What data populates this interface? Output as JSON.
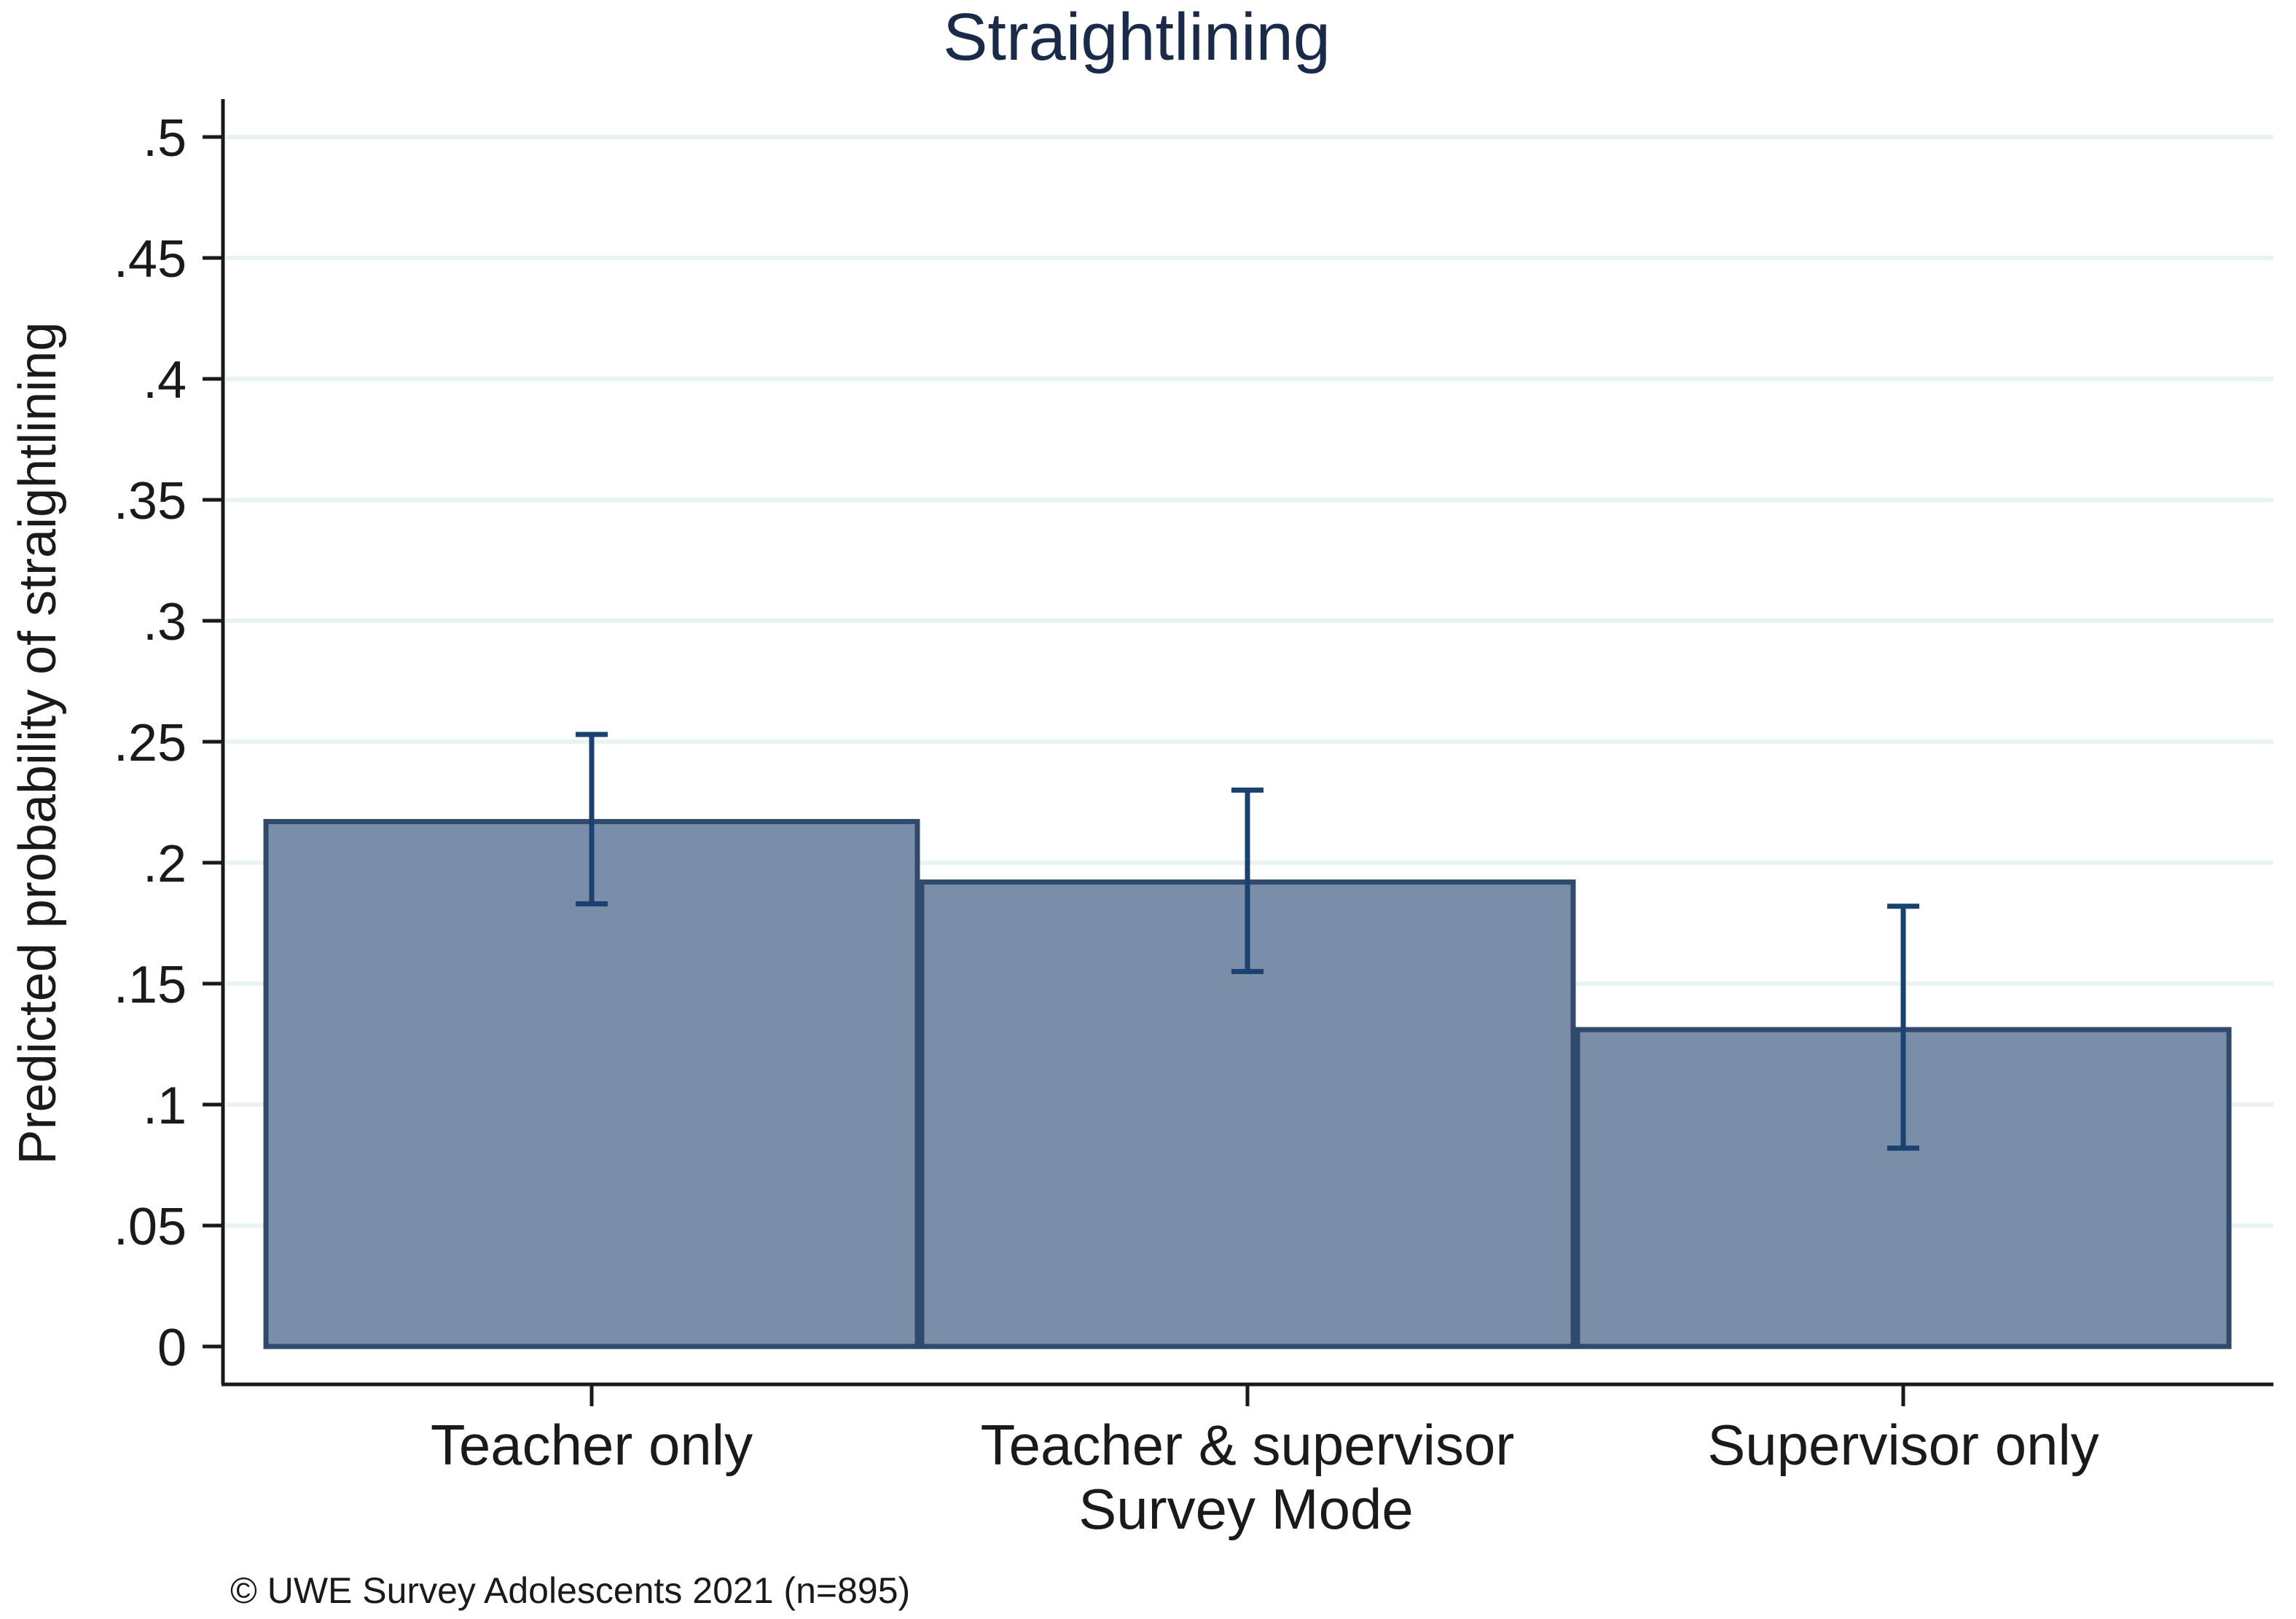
{
  "chart_data": {
    "type": "bar",
    "title": "Straightlining",
    "xlabel": "Survey Mode",
    "ylabel": "Predicted probability of straightlining",
    "categories": [
      "Teacher only",
      "Teacher & supervisor",
      "Supervisor only"
    ],
    "series": [
      {
        "values": [
          0.217,
          0.192,
          0.131
        ],
        "ci_lower": [
          0.183,
          0.155,
          0.082
        ],
        "ci_upper": [
          0.253,
          0.23,
          0.182
        ]
      }
    ],
    "ylim": [
      0,
      0.5
    ],
    "yticks": [
      0,
      0.05,
      0.1,
      0.15,
      0.2,
      0.25,
      0.3,
      0.35,
      0.4,
      0.45,
      0.5
    ],
    "ytick_labels": [
      "0",
      ".05",
      ".1",
      ".15",
      ".2",
      ".25",
      ".3",
      ".35",
      ".4",
      ".45",
      ".5"
    ],
    "grid": true,
    "note": "© UWE Survey Adolescents 2021 (n=895)",
    "colors": {
      "bar_fill": "#7a8ea9",
      "bar_edge": "#2f4a6b",
      "error_bar": "#1a4270",
      "title": "#1a2a4a",
      "grid": "#eaf2f3"
    }
  }
}
